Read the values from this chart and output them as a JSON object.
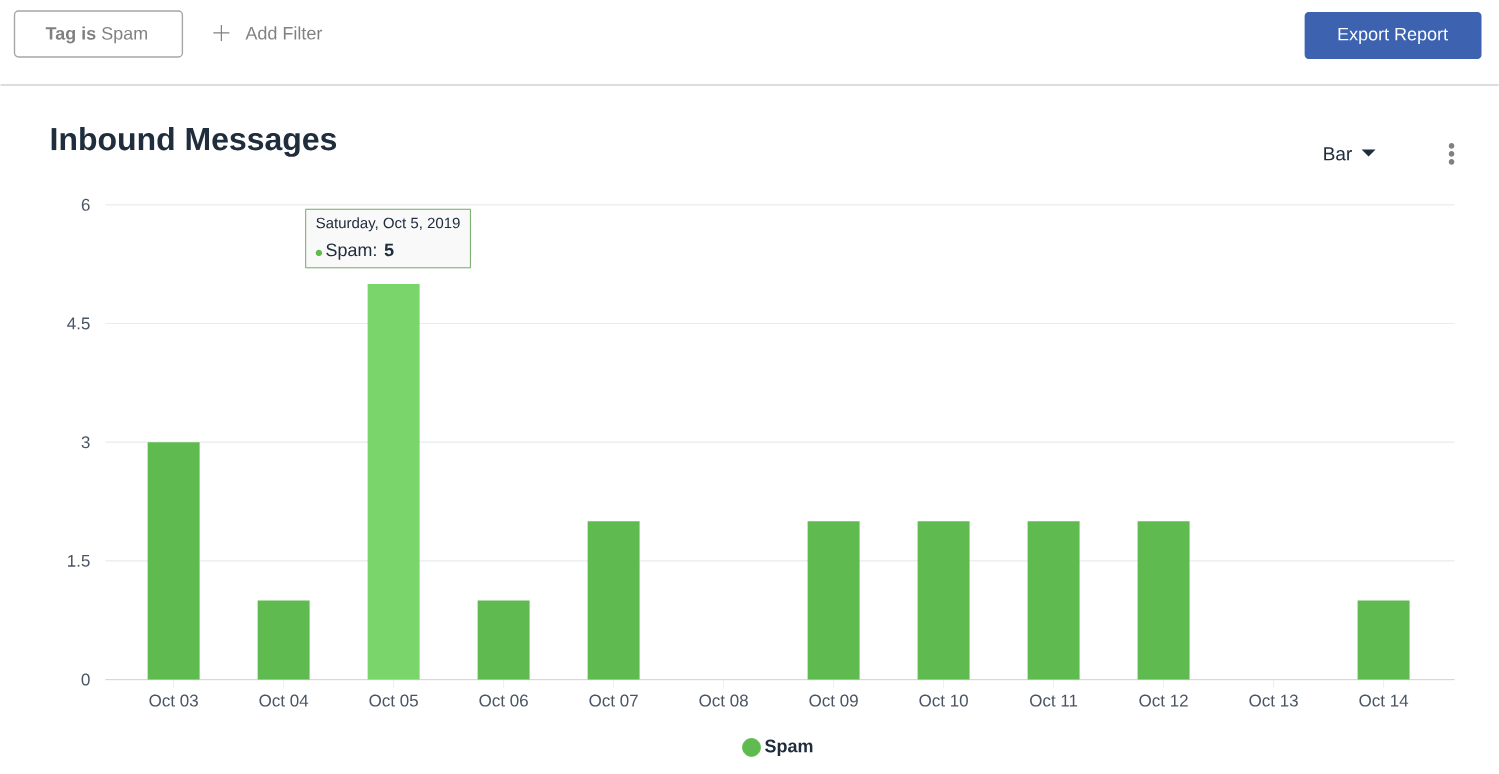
{
  "chart_data": {
    "type": "bar",
    "title": "Inbound Messages",
    "categories": [
      "Oct 03",
      "Oct 04",
      "Oct 05",
      "Oct 06",
      "Oct 07",
      "Oct 08",
      "Oct 09",
      "Oct 10",
      "Oct 11",
      "Oct 12",
      "Oct 13",
      "Oct 14"
    ],
    "series": [
      {
        "name": "Spam",
        "color": "#5fbb4f",
        "colors": [
          "#5fbb4f",
          "#5fbb4f",
          "#7ad56a",
          "#5fbb4f",
          "#5fbb4f",
          "#5fbb4f",
          "#5fbb4f",
          "#5fbb4f",
          "#5fbb4f",
          "#5fbb4f",
          "#5fbb4f",
          "#5fbb4f"
        ],
        "values": [
          3,
          1,
          5,
          1,
          2,
          0,
          2,
          2,
          2,
          2,
          0,
          1
        ]
      }
    ],
    "ylim": [
      0,
      6
    ],
    "yticks": [
      0,
      1.5,
      3,
      4.5,
      6
    ],
    "grid": "y",
    "legend": "bottom",
    "annotations": [
      "**Tag is** Spam",
      "Add Filter",
      "Export Report",
      "Bar",
      "Saturday, Oct 5, 2019",
      "Spam: **5**"
    ]
  }
}
